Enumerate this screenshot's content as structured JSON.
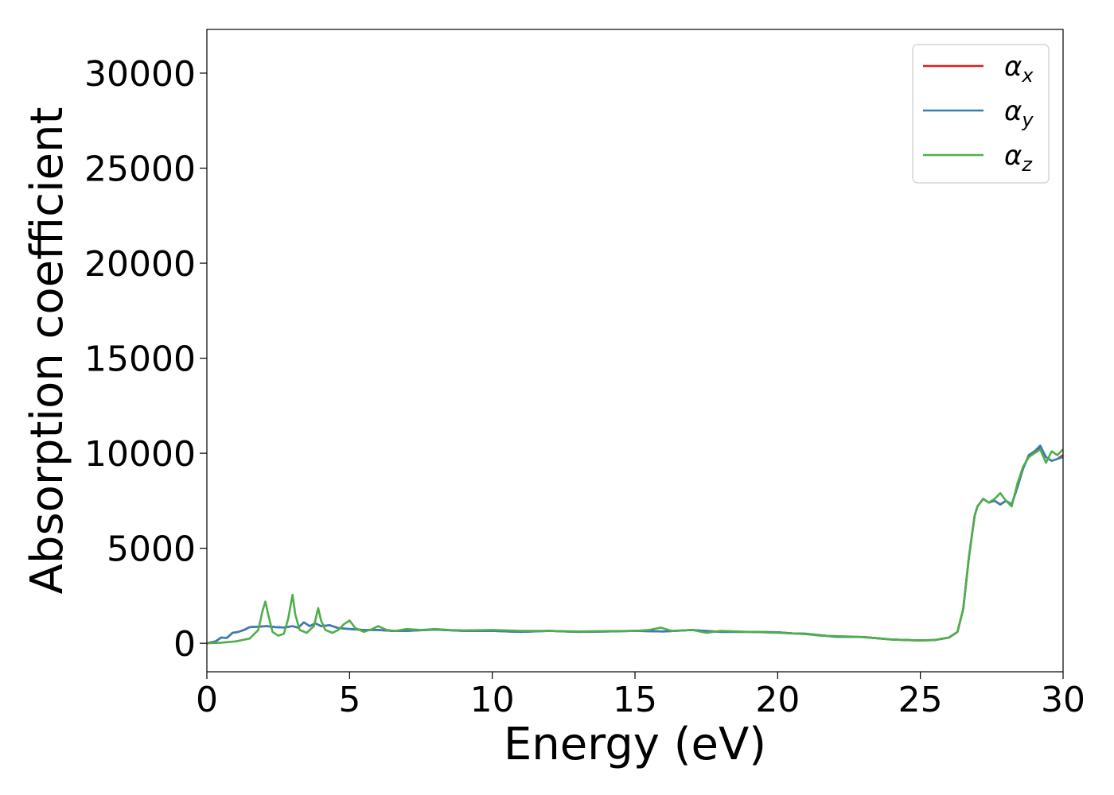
{
  "chart_data": {
    "type": "line",
    "title": "",
    "xlabel": "Energy (eV)",
    "ylabel": "Absorption coefficient",
    "xlim": [
      0,
      30
    ],
    "ylim": [
      -1500,
      32300
    ],
    "xticks": [
      0,
      5,
      10,
      15,
      20,
      25,
      30
    ],
    "yticks": [
      0,
      5000,
      10000,
      15000,
      20000,
      25000,
      30000
    ],
    "grid": false,
    "legend_position": "top-right",
    "series": [
      {
        "name": "αx",
        "label_base": "α",
        "label_sub": "x",
        "color": "#e41a1c",
        "x": [
          0,
          0.3,
          0.5,
          0.7,
          0.9,
          1.1,
          1.3,
          1.5,
          1.8,
          2.1,
          2.4,
          2.7,
          3.0,
          3.2,
          3.4,
          3.6,
          3.8,
          4.0,
          4.3,
          4.6,
          5.0,
          5.5,
          6.0,
          6.5,
          7.0,
          8.0,
          9.0,
          10.0,
          11.0,
          12.0,
          13.0,
          14.0,
          15.0,
          16.0,
          17.0,
          18.0,
          19.0,
          20.0,
          20.5,
          21.0,
          21.5,
          22.0,
          23.0,
          24.0,
          25.0,
          25.5,
          26.0,
          26.3,
          26.5,
          26.7,
          26.9,
          27.0,
          27.2,
          27.4,
          27.6,
          27.8,
          28.0,
          28.2,
          28.4,
          28.6,
          28.8,
          29.0,
          29.2,
          29.4,
          29.6,
          29.8,
          30.0
        ],
        "y": [
          0,
          100,
          300,
          280,
          550,
          600,
          700,
          850,
          870,
          900,
          850,
          830,
          900,
          820,
          1100,
          900,
          1050,
          900,
          950,
          800,
          750,
          700,
          700,
          650,
          650,
          720,
          650,
          650,
          600,
          650,
          600,
          620,
          650,
          620,
          700,
          600,
          600,
          580,
          520,
          500,
          420,
          350,
          330,
          200,
          150,
          170,
          300,
          600,
          1800,
          4500,
          6700,
          7200,
          7600,
          7400,
          7500,
          7300,
          7500,
          7300,
          8200,
          9200,
          9900,
          10100,
          10300,
          9800,
          9600,
          9700,
          9900
        ]
      },
      {
        "name": "αy",
        "label_base": "α",
        "label_sub": "y",
        "color": "#377eb8",
        "x": [
          0,
          0.3,
          0.5,
          0.7,
          0.9,
          1.1,
          1.3,
          1.5,
          1.8,
          2.1,
          2.4,
          2.7,
          3.0,
          3.2,
          3.4,
          3.6,
          3.8,
          4.0,
          4.3,
          4.6,
          5.0,
          5.5,
          6.0,
          6.5,
          7.0,
          8.0,
          9.0,
          10.0,
          11.0,
          12.0,
          13.0,
          14.0,
          15.0,
          16.0,
          17.0,
          18.0,
          19.0,
          20.0,
          20.5,
          21.0,
          21.5,
          22.0,
          23.0,
          24.0,
          25.0,
          25.5,
          26.0,
          26.3,
          26.5,
          26.7,
          26.9,
          27.0,
          27.2,
          27.4,
          27.6,
          27.8,
          28.0,
          28.2,
          28.4,
          28.6,
          28.8,
          29.0,
          29.2,
          29.4,
          29.6,
          29.8,
          30.0
        ],
        "y": [
          0,
          100,
          300,
          280,
          550,
          600,
          700,
          850,
          870,
          900,
          850,
          830,
          900,
          820,
          1100,
          900,
          1050,
          900,
          950,
          800,
          750,
          700,
          700,
          650,
          650,
          720,
          650,
          650,
          600,
          650,
          600,
          620,
          650,
          620,
          700,
          600,
          600,
          580,
          520,
          500,
          420,
          350,
          330,
          200,
          150,
          170,
          300,
          600,
          1800,
          4500,
          6700,
          7200,
          7600,
          7400,
          7500,
          7300,
          7500,
          7300,
          8200,
          9200,
          9900,
          10100,
          10400,
          9800,
          9600,
          9700,
          9800
        ]
      },
      {
        "name": "αz",
        "label_base": "α",
        "label_sub": "z",
        "color": "#4daf4a",
        "x": [
          0,
          0.5,
          1.0,
          1.5,
          1.8,
          1.95,
          2.05,
          2.15,
          2.3,
          2.5,
          2.7,
          2.85,
          3.0,
          3.1,
          3.25,
          3.5,
          3.75,
          3.9,
          4.0,
          4.15,
          4.4,
          4.6,
          4.8,
          5.0,
          5.2,
          5.5,
          5.8,
          6.0,
          6.3,
          6.6,
          7.0,
          7.5,
          8.0,
          8.5,
          9.0,
          10.0,
          11.0,
          12.0,
          13.0,
          14.0,
          15.0,
          15.5,
          15.9,
          16.3,
          17.0,
          17.5,
          18.0,
          19.0,
          20.0,
          20.5,
          21.0,
          21.5,
          22.0,
          23.0,
          24.0,
          25.0,
          25.5,
          26.0,
          26.3,
          26.5,
          26.7,
          26.9,
          27.0,
          27.2,
          27.4,
          27.6,
          27.8,
          28.0,
          28.2,
          28.4,
          28.6,
          28.8,
          29.0,
          29.2,
          29.4,
          29.6,
          29.8,
          30.0
        ],
        "y": [
          0,
          30,
          100,
          250,
          700,
          1700,
          2200,
          1500,
          600,
          400,
          500,
          1300,
          2550,
          1500,
          700,
          550,
          900,
          1850,
          1200,
          700,
          550,
          700,
          1000,
          1200,
          800,
          600,
          750,
          900,
          700,
          650,
          750,
          700,
          750,
          700,
          680,
          700,
          650,
          650,
          620,
          640,
          650,
          700,
          820,
          650,
          700,
          550,
          650,
          600,
          550,
          520,
          480,
          400,
          380,
          330,
          200,
          150,
          170,
          300,
          600,
          1800,
          4500,
          6700,
          7200,
          7600,
          7400,
          7600,
          7900,
          7500,
          7200,
          8400,
          9300,
          9800,
          10000,
          10200,
          9500,
          10100,
          9900,
          10200
        ]
      }
    ]
  }
}
